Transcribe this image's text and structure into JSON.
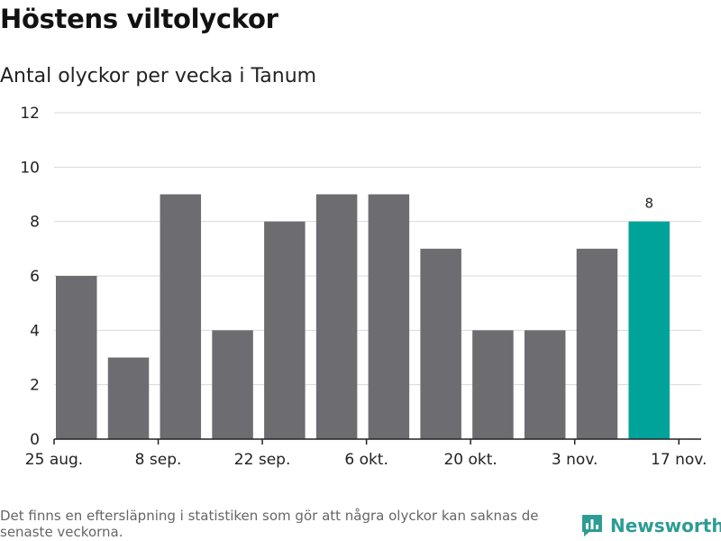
{
  "title": "Höstens viltolyckor",
  "subtitle": "Antal olyckor per vecka i Tanum",
  "footnote": "Det finns en eftersläpning i statistiken som gör att några olyckor kan saknas de senaste veckorna.",
  "brand": {
    "name": "Newsworthy",
    "icon": "bar-chart-logo-icon"
  },
  "colors": {
    "bar": "#6d6c70",
    "highlight": "#00a39a",
    "grid": "#d9d9d9",
    "axis": "#222222",
    "brand": "#2e9c94"
  },
  "chart_data": {
    "type": "bar",
    "title": "Höstens viltolyckor",
    "subtitle": "Antal olyckor per vecka i Tanum",
    "x": [
      "2023-08-28",
      "2023-09-04",
      "2023-09-11",
      "2023-09-18",
      "2023-09-25",
      "2023-10-02",
      "2023-10-09",
      "2023-10-16",
      "2023-10-23",
      "2023-10-30",
      "2023-11-06",
      "2023-11-13"
    ],
    "values": [
      6,
      3,
      9,
      4,
      8,
      9,
      9,
      7,
      4,
      4,
      7,
      8
    ],
    "highlight_index": 11,
    "data_labels": [
      {
        "index": 11,
        "text": "8"
      }
    ],
    "x_ticks": [
      {
        "date": "2023-08-25",
        "label": "25 aug."
      },
      {
        "date": "2023-09-08",
        "label": "8 sep."
      },
      {
        "date": "2023-09-22",
        "label": "22 sep."
      },
      {
        "date": "2023-10-06",
        "label": "6 okt."
      },
      {
        "date": "2023-10-20",
        "label": "20 okt."
      },
      {
        "date": "2023-11-03",
        "label": "3 nov."
      },
      {
        "date": "2023-11-17",
        "label": "17 nov."
      }
    ],
    "x_range": [
      "2023-08-25",
      "2023-11-20"
    ],
    "ylim": [
      0,
      12
    ],
    "y_ticks": [
      0,
      2,
      4,
      6,
      8,
      10,
      12
    ],
    "grid": true,
    "legend": "none",
    "xlabel": "",
    "ylabel": ""
  }
}
